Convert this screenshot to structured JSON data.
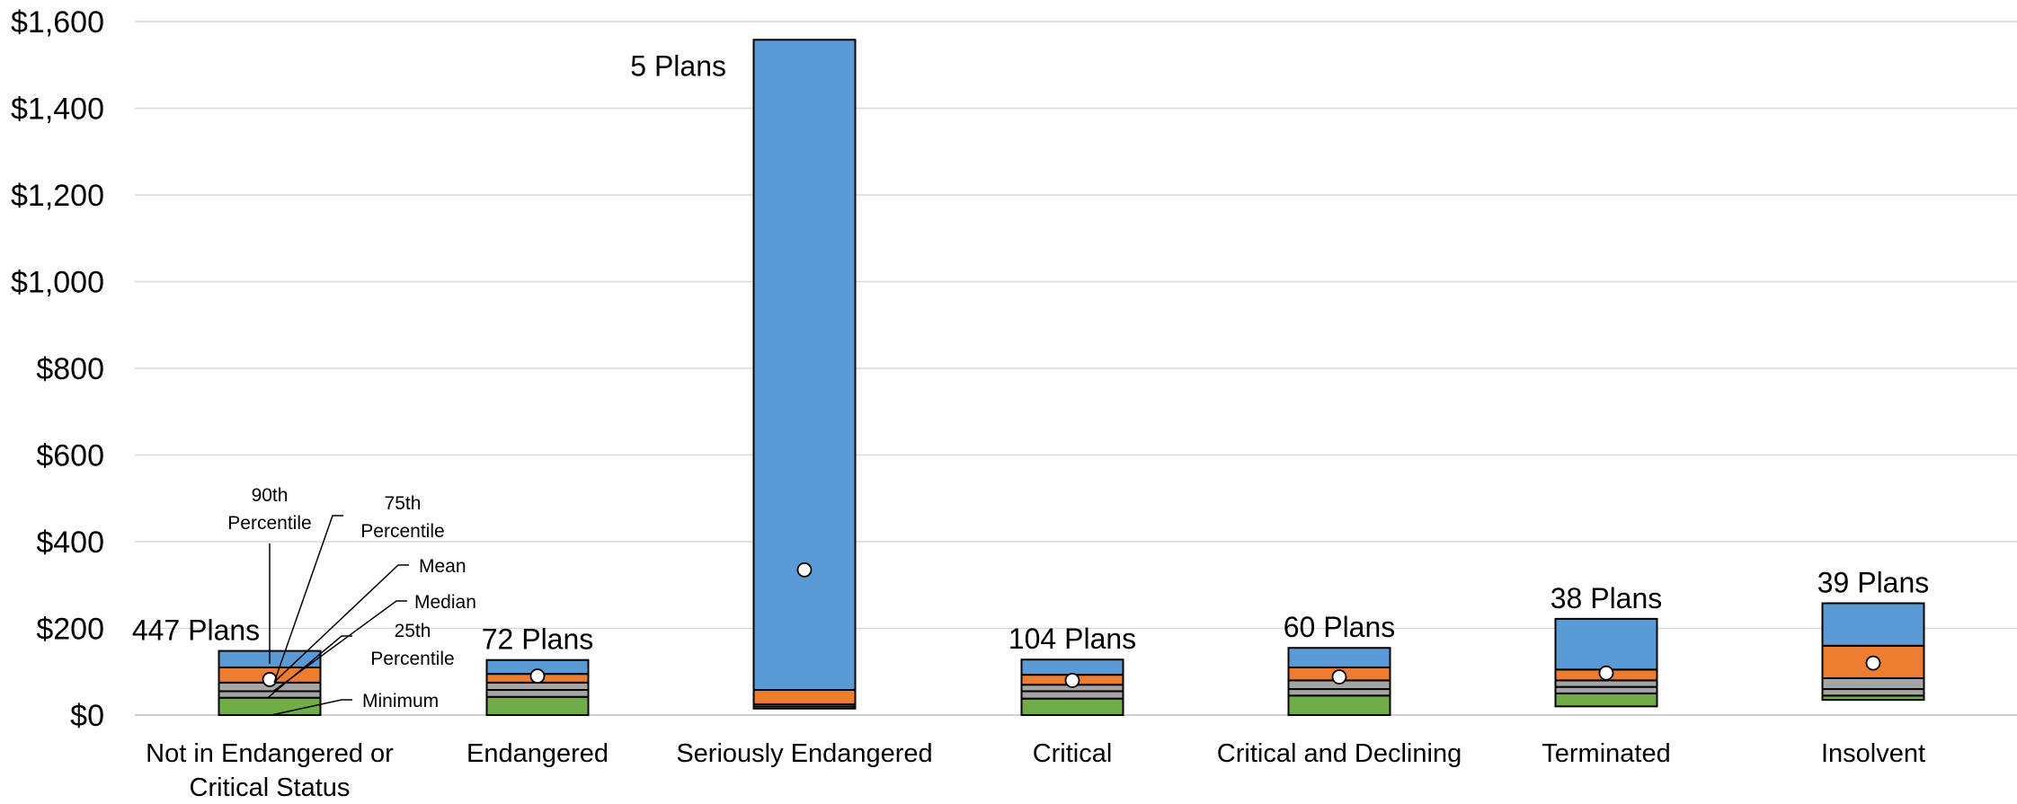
{
  "chart_data": {
    "type": "bar",
    "subtype": "stacked percentile box",
    "title": "",
    "xlabel": "",
    "ylabel": "",
    "y_ticks": [
      "$0",
      "$200",
      "$400",
      "$600",
      "$800",
      "$1,000",
      "$1,200",
      "$1,400",
      "$1,600"
    ],
    "ylim": [
      0,
      1600
    ],
    "grid": true,
    "categories": [
      {
        "label_lines": [
          "Not in Endangered or",
          "Critical Status"
        ],
        "count_label": "447 Plans",
        "min": 0,
        "p25": 40,
        "median": 55,
        "p75": 75,
        "p90": 110,
        "max": 148,
        "mean": 82
      },
      {
        "label_lines": [
          "Endangered"
        ],
        "count_label": "72 Plans",
        "min": 0,
        "p25": 42,
        "median": 58,
        "p75": 75,
        "p90": 95,
        "max": 127,
        "mean": 90
      },
      {
        "label_lines": [
          "Seriously Endangered"
        ],
        "count_label": "5 Plans",
        "min": 15,
        "p25": 20,
        "median": 20,
        "p75": 25,
        "p90": 58,
        "max": 1558,
        "mean": 335
      },
      {
        "label_lines": [
          "Critical"
        ],
        "count_label": "104 Plans",
        "min": 0,
        "p25": 38,
        "median": 55,
        "p75": 70,
        "p90": 93,
        "max": 128,
        "mean": 80
      },
      {
        "label_lines": [
          "Critical and Declining"
        ],
        "count_label": "60 Plans",
        "min": 0,
        "p25": 45,
        "median": 60,
        "p75": 80,
        "p90": 110,
        "max": 155,
        "mean": 88
      },
      {
        "label_lines": [
          "Terminated"
        ],
        "count_label": "38 Plans",
        "min": 20,
        "p25": 50,
        "median": 65,
        "p75": 80,
        "p90": 105,
        "max": 222,
        "mean": 97
      },
      {
        "label_lines": [
          "Insolvent"
        ],
        "count_label": "39 Plans",
        "min": 35,
        "p25": 45,
        "median": 60,
        "p75": 85,
        "p90": 160,
        "max": 258,
        "mean": 120
      }
    ],
    "segment_colors": {
      "min_to_p25": "#70AD47",
      "p25_to_median": "#A5A5A5",
      "median_to_p75": "#A5A5A5",
      "p75_to_p90": "#ED7D31",
      "p90_to_max": "#5B9BD5"
    },
    "mean_marker_color": "#FFFFFF",
    "legend_annotations": {
      "p90": [
        "90th",
        "Percentile"
      ],
      "p75": [
        "75th",
        "Percentile"
      ],
      "mean": [
        "Mean"
      ],
      "median": [
        "Median"
      ],
      "p25": [
        "25th",
        "Percentile"
      ],
      "min": [
        "Minimum"
      ]
    }
  }
}
